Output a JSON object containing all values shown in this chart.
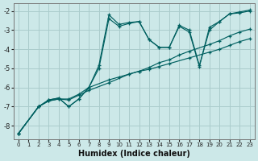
{
  "xlabel": "Humidex (Indice chaleur)",
  "xlim": [
    -0.5,
    23.5
  ],
  "ylim": [
    -8.7,
    -1.6
  ],
  "xticks": [
    0,
    1,
    2,
    3,
    4,
    5,
    6,
    7,
    8,
    9,
    10,
    11,
    12,
    13,
    14,
    15,
    16,
    17,
    18,
    19,
    20,
    21,
    22,
    23
  ],
  "yticks": [
    -8,
    -7,
    -6,
    -5,
    -4,
    -3,
    -2
  ],
  "bg_color": "#cce8e8",
  "grid_color": "#aacccc",
  "line_color": "#006060",
  "lines": [
    {
      "x": [
        0,
        2,
        3,
        4,
        5,
        6,
        7,
        9,
        11,
        12,
        13,
        14,
        15,
        17,
        19,
        20,
        21,
        22,
        23
      ],
      "y": [
        -8.4,
        -7.0,
        -6.7,
        -6.6,
        -6.65,
        -6.4,
        -6.15,
        -5.75,
        -5.3,
        -5.15,
        -5.05,
        -4.9,
        -4.75,
        -4.45,
        -4.15,
        -4.0,
        -3.8,
        -3.6,
        -3.45
      ]
    },
    {
      "x": [
        0,
        2,
        3,
        4,
        5,
        6,
        7,
        9,
        10,
        11,
        12,
        13,
        14,
        15,
        16,
        17,
        19,
        20,
        21,
        22,
        23
      ],
      "y": [
        -8.4,
        -7.0,
        -6.7,
        -6.6,
        -6.6,
        -6.35,
        -6.0,
        -5.6,
        -5.45,
        -5.3,
        -5.15,
        -4.95,
        -4.7,
        -4.55,
        -4.3,
        -4.1,
        -3.75,
        -3.55,
        -3.3,
        -3.1,
        -2.95
      ]
    },
    {
      "x": [
        0,
        2,
        3,
        4,
        5,
        6,
        7,
        8,
        9,
        10,
        11,
        12,
        13,
        14,
        15,
        16,
        17,
        18,
        19,
        20,
        21,
        22,
        23
      ],
      "y": [
        -8.4,
        -7.0,
        -6.65,
        -6.55,
        -7.0,
        -6.6,
        -6.0,
        -4.85,
        -2.2,
        -2.7,
        -2.6,
        -2.55,
        -3.5,
        -3.9,
        -3.9,
        -2.75,
        -3.0,
        -4.85,
        -3.0,
        -2.55,
        -2.15,
        -2.05,
        -1.95
      ]
    },
    {
      "x": [
        0,
        2,
        3,
        4,
        5,
        6,
        7,
        8,
        9,
        10,
        11,
        12,
        13,
        14,
        15,
        16,
        17,
        18,
        19,
        20,
        21,
        22,
        23
      ],
      "y": [
        -8.4,
        -7.0,
        -6.65,
        -6.55,
        -7.0,
        -6.6,
        -6.0,
        -5.0,
        -2.4,
        -2.8,
        -2.65,
        -2.55,
        -3.5,
        -3.9,
        -3.9,
        -2.8,
        -3.1,
        -4.9,
        -2.85,
        -2.55,
        -2.15,
        -2.1,
        -2.0
      ]
    }
  ]
}
